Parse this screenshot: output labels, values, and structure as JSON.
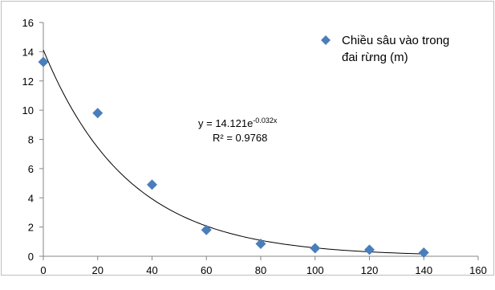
{
  "chart_data": {
    "type": "scatter",
    "title": "",
    "xlabel": "",
    "ylabel": "",
    "xlim": [
      0,
      160
    ],
    "ylim": [
      0,
      16
    ],
    "x_ticks": [
      0,
      20,
      40,
      60,
      80,
      100,
      120,
      140,
      160
    ],
    "y_ticks": [
      0,
      2,
      4,
      6,
      8,
      10,
      12,
      14,
      16
    ],
    "grid": false,
    "legend_position": "top-right",
    "series": [
      {
        "name": "Chiều sâu vào trong đai rừng (m)",
        "legend_lines": [
          "Chiều sâu vào trong",
          "đai rừng (m)"
        ],
        "marker": "diamond",
        "color": "#4a7ebb",
        "x": [
          0,
          20,
          40,
          60,
          80,
          100,
          120,
          140
        ],
        "y": [
          13.3,
          9.8,
          4.9,
          1.8,
          0.85,
          0.55,
          0.45,
          0.25
        ]
      }
    ],
    "trendline": {
      "type": "exponential",
      "a": 14.121,
      "b": -0.032,
      "color": "#000000",
      "equation_main": "y = 14.121e",
      "equation_exponent": "-0.032x",
      "r_squared_text": "R² = 0.9768"
    }
  }
}
